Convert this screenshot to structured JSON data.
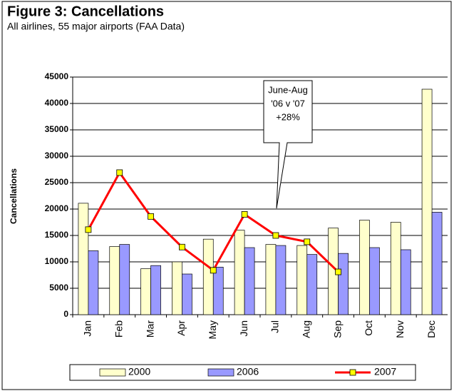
{
  "chart_data": {
    "type": "bar_line",
    "title": "Figure 3:  Cancellations",
    "subtitle": "All airlines, 55 major airports (FAA Data)",
    "y_label": "Cancellations",
    "annotation": [
      "June-Aug",
      "'06 v '07",
      "+28%"
    ],
    "categories": [
      "Jan",
      "Feb",
      "Mar",
      "Apr",
      "May",
      "Jun",
      "Jul",
      "Aug",
      "Sep",
      "Oct",
      "Nov",
      "Dec"
    ],
    "series": [
      {
        "name": "2000",
        "type": "bar",
        "color": "#ffffcc",
        "values": [
          21100,
          12900,
          8700,
          10000,
          14300,
          16000,
          13300,
          13100,
          16400,
          17900,
          17500,
          42700
        ]
      },
      {
        "name": "2006",
        "type": "bar",
        "color": "#9999ff",
        "values": [
          12100,
          13300,
          9300,
          7700,
          9000,
          12700,
          13100,
          11400,
          11600,
          12700,
          12300,
          19400
        ]
      },
      {
        "name": "2007",
        "type": "line",
        "color": "#ff0000",
        "marker_color": "#ffff00",
        "values": [
          16100,
          26900,
          18600,
          12800,
          8400,
          19000,
          15000,
          13800,
          8100,
          null,
          null,
          null
        ]
      }
    ],
    "ylim": [
      0,
      45000
    ],
    "yticks": [
      0,
      5000,
      10000,
      15000,
      20000,
      25000,
      30000,
      35000,
      40000,
      45000
    ],
    "grid": true,
    "legend": "bottom"
  }
}
